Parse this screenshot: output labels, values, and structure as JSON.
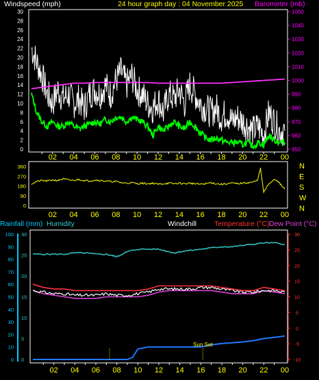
{
  "header": {
    "left_title": "Windspeed (mph)",
    "center_title": "24 hour graph day : 04 November 2025",
    "right_title": "Barometer (mb)"
  },
  "bottom_header": {
    "rainfall": "Rainfall (mm)",
    "humidity": "Humidity",
    "windchill": "Windchill",
    "temperature": "Temperature (°C)",
    "dewpoint": "Dew Point (°C)"
  },
  "annotation": {
    "sunset": "Sun Set"
  },
  "colors": {
    "background": "#000000",
    "frame": "#ffffff",
    "hour_tick": "#ffff00",
    "windspeed_axis": "#ffffff",
    "barometer_axis": "#ff00ff",
    "direction_axis": "#ffff00",
    "wind_gust": "#ffffff",
    "wind_avg": "#00ff00",
    "barometer": "#ff33ff",
    "direction": "#ffff00",
    "rainfall_axis": "#00ccff",
    "humidity_axis": "#33cccc",
    "temperature_axis": "#ff3333",
    "humidity": "#33bbbb",
    "temperature": "#ff3344",
    "dewpoint": "#dd44dd",
    "windchill": "#ffffff",
    "rainfall": "#2277ff",
    "sun_marker": "#ffff00"
  },
  "chart_data": [
    {
      "type": "line",
      "name": "wind-barometer",
      "x_ticks": [
        "02",
        "04",
        "06",
        "08",
        "10",
        "12",
        "14",
        "16",
        "18",
        "20",
        "22",
        "00"
      ],
      "windspeed_axis": {
        "ticks": [
          0,
          2,
          4,
          6,
          8,
          10,
          12,
          14,
          16,
          18,
          20,
          22,
          24,
          26,
          28,
          30
        ],
        "ylim": [
          0,
          30
        ]
      },
      "barometer_axis": {
        "ticks": [
          950,
          960,
          970,
          980,
          990,
          1000,
          1010,
          1020,
          1030,
          1040,
          1050
        ],
        "ylim": [
          950,
          1050
        ]
      },
      "series": [
        {
          "name": "Gust",
          "axis": "left",
          "x": [
            0,
            0.5,
            1,
            1.5,
            2,
            2.5,
            3,
            3.5,
            4,
            4.5,
            5,
            5.5,
            6,
            6.5,
            7,
            7.5,
            8,
            8.5,
            9,
            9.5,
            10,
            10.5,
            11,
            11.5,
            12,
            12.5,
            13,
            13.5,
            14,
            14.5,
            15,
            15.5,
            16,
            16.5,
            17,
            17.5,
            18,
            18.5,
            19,
            19.5,
            20,
            20.5,
            21,
            21.5,
            22,
            22.5,
            23,
            23.5,
            24
          ],
          "values": [
            22,
            19,
            16,
            12,
            10,
            13,
            11,
            12,
            10,
            11,
            9,
            12,
            13,
            12,
            14,
            12,
            15,
            17,
            14,
            16,
            13,
            12,
            10,
            9,
            11,
            8,
            12,
            11,
            13,
            10,
            14,
            12,
            10,
            9,
            8,
            9,
            7,
            8,
            6,
            7,
            6,
            5,
            4,
            5,
            3,
            8,
            6,
            4,
            4
          ]
        },
        {
          "name": "Average",
          "axis": "left",
          "x": [
            0,
            0.5,
            1,
            1.5,
            2,
            2.5,
            3,
            3.5,
            4,
            4.5,
            5,
            5.5,
            6,
            6.5,
            7,
            7.5,
            8,
            8.5,
            9,
            9.5,
            10,
            10.5,
            11,
            11.5,
            12,
            12.5,
            13,
            13.5,
            14,
            14.5,
            15,
            15.5,
            16,
            16.5,
            17,
            17.5,
            18,
            18.5,
            19,
            19.5,
            20,
            20.5,
            21,
            21.5,
            22,
            22.5,
            23,
            23.5,
            24
          ],
          "values": [
            12,
            8,
            6,
            5,
            6,
            5,
            5,
            6,
            5,
            4.5,
            5,
            5.5,
            6,
            5.5,
            6.5,
            6,
            7,
            7,
            6,
            7,
            6.5,
            6,
            5,
            3,
            5,
            4,
            5,
            6,
            5,
            4.5,
            6,
            5,
            3.5,
            2.5,
            2,
            2.5,
            2,
            1.5,
            1.5,
            1.5,
            1,
            1.5,
            0.5,
            1.5,
            1,
            3,
            2,
            1.5,
            1.5
          ]
        },
        {
          "name": "Barometer",
          "axis": "right",
          "x": [
            0,
            1,
            2,
            3,
            4,
            5,
            6,
            7,
            8,
            9,
            10,
            11,
            12,
            13,
            14,
            15,
            16,
            17,
            18,
            19,
            20,
            21,
            22,
            23,
            24
          ],
          "values": [
            994,
            995,
            996,
            997,
            998,
            998,
            998.5,
            998.5,
            998.5,
            998.5,
            998.5,
            998.5,
            998,
            998,
            998,
            998,
            998,
            998,
            998,
            998.5,
            999,
            999.5,
            1000,
            1000.5,
            1001
          ]
        }
      ]
    },
    {
      "type": "line",
      "name": "wind-direction",
      "x_ticks": [
        "02",
        "04",
        "06",
        "08",
        "10",
        "12",
        "14",
        "16",
        "18",
        "20",
        "22",
        "00"
      ],
      "y_ticks": [
        0,
        90,
        180,
        270,
        360
      ],
      "right_labels": [
        "N",
        "W",
        "S",
        "E",
        "N"
      ],
      "ylim": [
        0,
        360
      ],
      "series": [
        {
          "name": "Direction",
          "x": [
            0,
            0.5,
            1,
            1.5,
            2,
            2.5,
            3,
            3.5,
            4,
            4.5,
            5,
            5.5,
            6,
            6.5,
            7,
            7.5,
            8,
            8.5,
            9,
            9.5,
            10,
            10.5,
            11,
            11.5,
            12,
            12.5,
            13,
            13.5,
            14,
            14.5,
            15,
            15.5,
            16,
            16.5,
            17,
            17.5,
            18,
            18.5,
            19,
            19.5,
            20,
            20.5,
            21,
            21.4,
            21.7,
            22,
            22.5,
            23,
            23.3,
            23.7,
            24
          ],
          "values": [
            200,
            220,
            230,
            225,
            235,
            230,
            245,
            235,
            230,
            240,
            230,
            225,
            235,
            230,
            225,
            220,
            220,
            210,
            205,
            210,
            200,
            205,
            200,
            205,
            195,
            200,
            205,
            200,
            205,
            200,
            205,
            200,
            195,
            200,
            210,
            200,
            195,
            200,
            205,
            200,
            205,
            210,
            215,
            230,
            340,
            120,
            200,
            240,
            230,
            180,
            150
          ]
        }
      ]
    },
    {
      "type": "line",
      "name": "temperature-humidity-rain",
      "x_ticks": [
        "02",
        "04",
        "06",
        "08",
        "10",
        "12",
        "14",
        "16",
        "18",
        "20",
        "22",
        "00"
      ],
      "humidity_axis": {
        "ticks": [
          0,
          10,
          20,
          30,
          40,
          50,
          60,
          70,
          80,
          90,
          100
        ],
        "ylim": [
          0,
          100
        ]
      },
      "rainfall_axis": {
        "ticks": [
          0,
          5,
          10,
          15,
          20,
          25,
          30
        ],
        "ylim": [
          0,
          30
        ]
      },
      "temperature_axis": {
        "ticks": [
          -10,
          -5,
          0,
          5,
          10,
          15,
          20,
          25,
          30
        ],
        "ylim": [
          -10,
          30
        ]
      },
      "series": [
        {
          "name": "Humidity",
          "axis": "humidity",
          "x": [
            0,
            1,
            2,
            3,
            4,
            5,
            6,
            7,
            7.5,
            8,
            8.5,
            9,
            10,
            11,
            12,
            13,
            13.5,
            14,
            15,
            16,
            17,
            18,
            19,
            20,
            21,
            22,
            23,
            24
          ],
          "values": [
            84,
            84,
            84,
            84,
            85,
            85,
            84,
            84,
            83,
            82,
            84,
            86,
            88,
            88,
            88,
            86,
            85,
            86,
            87,
            88,
            89,
            90,
            90,
            91,
            92,
            93,
            93,
            92
          ]
        },
        {
          "name": "Temperature",
          "axis": "temperature",
          "x": [
            0,
            1,
            2,
            3,
            4,
            5,
            6,
            7,
            8,
            9,
            10,
            11,
            12,
            13,
            14,
            15,
            16,
            17,
            18,
            19,
            20,
            21,
            22,
            23,
            24
          ],
          "values": [
            14,
            13,
            12.5,
            12.5,
            12,
            12,
            12,
            12,
            12,
            12,
            12,
            12.5,
            13.5,
            13.5,
            13.5,
            13.5,
            13.5,
            13.5,
            13,
            12.5,
            12,
            12,
            13,
            12.5,
            12
          ]
        },
        {
          "name": "Dew Point",
          "axis": "temperature",
          "x": [
            0,
            1,
            2,
            3,
            4,
            5,
            6,
            7,
            8,
            9,
            10,
            11,
            12,
            13,
            14,
            15,
            16,
            17,
            18,
            19,
            20,
            21,
            22,
            23,
            24
          ],
          "values": [
            12,
            11,
            10.5,
            10,
            9.5,
            9.5,
            9.5,
            10,
            10,
            10,
            10,
            10.5,
            11.5,
            12,
            12,
            12,
            12,
            12,
            11.5,
            11,
            11,
            11,
            12,
            11.5,
            11
          ]
        },
        {
          "name": "Windchill",
          "axis": "temperature",
          "x": [
            0,
            1,
            2,
            3,
            4,
            5,
            6,
            7,
            8,
            9,
            10,
            11,
            12,
            13,
            14,
            15,
            16,
            17,
            18,
            19,
            20,
            21,
            22,
            23,
            24
          ],
          "values": [
            12,
            11.5,
            11,
            11,
            10.5,
            10.5,
            10.5,
            11,
            10.5,
            10.5,
            11,
            11.5,
            12.5,
            12.5,
            12.5,
            12.5,
            13,
            13,
            12.5,
            12,
            11.5,
            11.5,
            12,
            12,
            11.5
          ]
        },
        {
          "name": "Rainfall",
          "axis": "rainfall",
          "x": [
            0,
            1,
            2,
            3,
            4,
            5,
            6,
            7,
            8,
            9,
            9.5,
            10,
            11,
            12,
            13,
            14,
            15,
            16,
            17,
            18,
            19,
            20,
            21,
            22,
            23,
            24
          ],
          "values": [
            0,
            0,
            0,
            0,
            0,
            0,
            0,
            0,
            0,
            0,
            0.5,
            2.5,
            3,
            3,
            3,
            3,
            3,
            3,
            3.5,
            3.8,
            4,
            4.2,
            4.5,
            5,
            5.3,
            5.6
          ]
        }
      ],
      "markers": [
        {
          "x": 7.3,
          "label": ""
        },
        {
          "x": 16.2,
          "label": "Sun Set"
        }
      ]
    }
  ]
}
